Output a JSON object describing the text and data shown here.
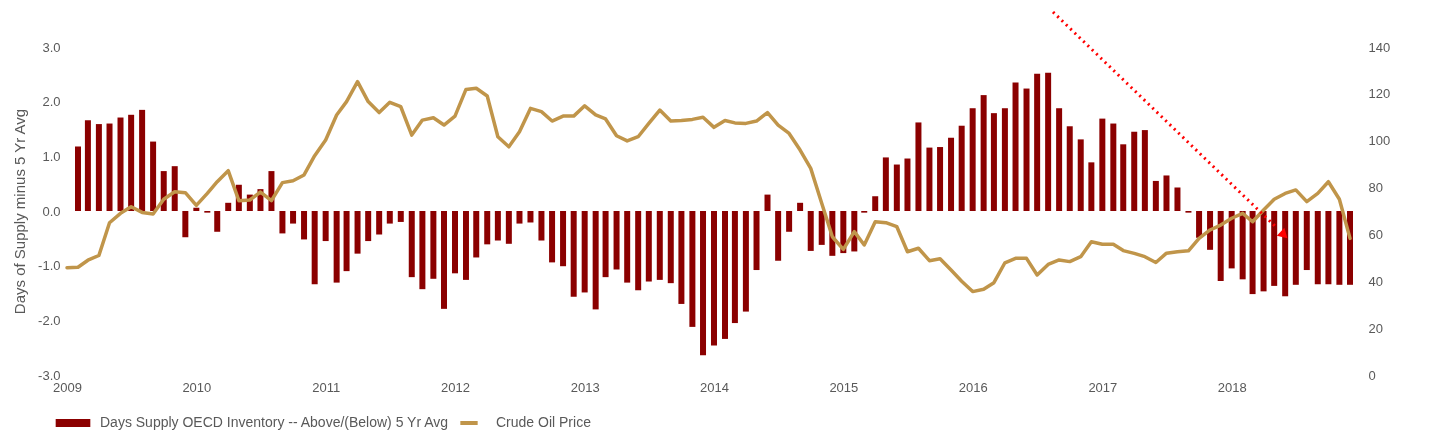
{
  "chart_data": {
    "type": "bar",
    "ylabel": "Days of Supply minus 5 Yr Avg",
    "legend": "bottom",
    "xlim": [
      "2009-01",
      "2019-01"
    ],
    "xticks": [
      "2009",
      "2010",
      "2011",
      "2012",
      "2013",
      "2014",
      "2015",
      "2016",
      "2017",
      "2018"
    ],
    "ylim": [
      -3,
      3
    ],
    "yticks": [
      {
        "value": -3,
        "label": "-3.0"
      },
      {
        "value": -2,
        "label": "-2.0"
      },
      {
        "value": -1,
        "label": "-1.0"
      },
      {
        "value": 0,
        "label": "0.0"
      },
      {
        "value": 1,
        "label": "1.0"
      },
      {
        "value": 2,
        "label": "2.0"
      },
      {
        "value": 3,
        "label": "3.0"
      }
    ],
    "y2lim": [
      0,
      140
    ],
    "y2ticks": [
      0,
      20,
      40,
      60,
      80,
      100,
      120,
      140
    ],
    "series": [
      {
        "name": "Days Supply OECD Inventory -- Above/(Below) 5 Yr Avg",
        "color": "#8b0000",
        "x": [
          "2009-02",
          "2009-03",
          "2009-04",
          "2009-05",
          "2009-06",
          "2009-07",
          "2009-08",
          "2009-09",
          "2009-10",
          "2009-11",
          "2009-12",
          "2010-01",
          "2010-02",
          "2010-03",
          "2010-04",
          "2010-05",
          "2010-06",
          "2010-07",
          "2010-08",
          "2010-09",
          "2010-10",
          "2010-11",
          "2010-12",
          "2011-01",
          "2011-02",
          "2011-03",
          "2011-04",
          "2011-05",
          "2011-06",
          "2011-07",
          "2011-08",
          "2011-09",
          "2011-10",
          "2011-11",
          "2011-12",
          "2012-01",
          "2012-02",
          "2012-03",
          "2012-04",
          "2012-05",
          "2012-06",
          "2012-07",
          "2012-08",
          "2012-09",
          "2012-10",
          "2012-11",
          "2012-12",
          "2013-01",
          "2013-02",
          "2013-03",
          "2013-04",
          "2013-05",
          "2013-06",
          "2013-07",
          "2013-08",
          "2013-09",
          "2013-10",
          "2013-11",
          "2013-12",
          "2014-01",
          "2014-02",
          "2014-03",
          "2014-04",
          "2014-05",
          "2014-06",
          "2014-07",
          "2014-08",
          "2014-09",
          "2014-10",
          "2014-11",
          "2014-12",
          "2015-01",
          "2015-02",
          "2015-03",
          "2015-04",
          "2015-05",
          "2015-06",
          "2015-07",
          "2015-08",
          "2015-09",
          "2015-10",
          "2015-11",
          "2015-12",
          "2016-01",
          "2016-02",
          "2016-03",
          "2016-04",
          "2016-05",
          "2016-06",
          "2016-07",
          "2016-08",
          "2016-09",
          "2016-10",
          "2016-11",
          "2016-12",
          "2017-01",
          "2017-02",
          "2017-03",
          "2017-04",
          "2017-05",
          "2017-06",
          "2017-07",
          "2017-08",
          "2017-09",
          "2017-10",
          "2017-11",
          "2017-12",
          "2018-01",
          "2018-02",
          "2018-03",
          "2018-04",
          "2018-05",
          "2018-06",
          "2018-07",
          "2018-08",
          "2018-09",
          "2018-10",
          "2018-11",
          "2018-12"
        ],
        "values": [
          1.18,
          1.66,
          1.59,
          1.6,
          1.71,
          1.76,
          1.85,
          1.27,
          0.73,
          0.82,
          -0.48,
          0.06,
          -0.03,
          -0.38,
          0.15,
          0.48,
          0.3,
          0.4,
          0.73,
          -0.41,
          -0.23,
          -0.52,
          -1.34,
          -0.55,
          -1.31,
          -1.1,
          -0.78,
          -0.55,
          -0.43,
          -0.23,
          -0.2,
          -1.21,
          -1.43,
          -1.24,
          -1.79,
          -1.14,
          -1.26,
          -0.85,
          -0.61,
          -0.54,
          -0.6,
          -0.23,
          -0.21,
          -0.54,
          -0.94,
          -1.01,
          -1.57,
          -1.49,
          -1.8,
          -1.21,
          -1.07,
          -1.31,
          -1.45,
          -1.29,
          -1.26,
          -1.32,
          -1.7,
          -2.12,
          -2.64,
          -2.46,
          -2.34,
          -2.05,
          -1.84,
          -1.08,
          0.3,
          -0.91,
          -0.38,
          0.15,
          -0.73,
          -0.62,
          -0.82,
          -0.77,
          -0.74,
          -0.03,
          0.27,
          0.98,
          0.85,
          0.96,
          1.62,
          1.16,
          1.17,
          1.34,
          1.56,
          1.88,
          2.12,
          1.79,
          1.88,
          2.35,
          2.24,
          2.51,
          2.53,
          1.88,
          1.55,
          1.31,
          0.89,
          1.69,
          1.6,
          1.22,
          1.45,
          1.48,
          0.55,
          0.65,
          0.43,
          -0.03,
          -0.49,
          -0.71,
          -1.28,
          -1.05,
          -1.25,
          -1.52,
          -1.47,
          -1.37,
          -1.56,
          -1.35,
          -1.08,
          -1.34,
          -1.34,
          -1.35,
          -1.35
        ]
      },
      {
        "name": "Crude Oil Price",
        "type": "line",
        "axis": "y2",
        "color": "#c0954a",
        "x": [
          "2009-01",
          "2009-02",
          "2009-03",
          "2009-04",
          "2009-05",
          "2009-06",
          "2009-07",
          "2009-08",
          "2009-09",
          "2009-10",
          "2009-11",
          "2009-12",
          "2010-01",
          "2010-02",
          "2010-03",
          "2010-04",
          "2010-05",
          "2010-06",
          "2010-07",
          "2010-08",
          "2010-09",
          "2010-10",
          "2010-11",
          "2010-12",
          "2011-01",
          "2011-02",
          "2011-03",
          "2011-04",
          "2011-05",
          "2011-06",
          "2011-07",
          "2011-08",
          "2011-09",
          "2011-10",
          "2011-11",
          "2011-12",
          "2012-01",
          "2012-02",
          "2012-03",
          "2012-04",
          "2012-05",
          "2012-06",
          "2012-07",
          "2012-08",
          "2012-09",
          "2012-10",
          "2012-11",
          "2012-12",
          "2013-01",
          "2013-02",
          "2013-03",
          "2013-04",
          "2013-05",
          "2013-06",
          "2013-07",
          "2013-08",
          "2013-09",
          "2013-10",
          "2013-11",
          "2013-12",
          "2014-01",
          "2014-02",
          "2014-03",
          "2014-04",
          "2014-05",
          "2014-06",
          "2014-07",
          "2014-08",
          "2014-09",
          "2014-10",
          "2014-11",
          "2014-12",
          "2015-01",
          "2015-02",
          "2015-03",
          "2015-04",
          "2015-05",
          "2015-06",
          "2015-07",
          "2015-08",
          "2015-09",
          "2015-10",
          "2015-11",
          "2015-12",
          "2016-01",
          "2016-02",
          "2016-03",
          "2016-04",
          "2016-05",
          "2016-06",
          "2016-07",
          "2016-08",
          "2016-09",
          "2016-10",
          "2016-11",
          "2016-12",
          "2017-01",
          "2017-02",
          "2017-03",
          "2017-04",
          "2017-05",
          "2017-06",
          "2017-07",
          "2017-08",
          "2017-09",
          "2017-10",
          "2017-11",
          "2017-12",
          "2018-01",
          "2018-02",
          "2018-03",
          "2018-04",
          "2018-05",
          "2018-06",
          "2018-07",
          "2018-08",
          "2018-09",
          "2018-10",
          "2018-11",
          "2018-12"
        ],
        "values": [
          45.8,
          46,
          49,
          51,
          65,
          69,
          71.8,
          69.4,
          68.7,
          75,
          78.2,
          77.8,
          72.4,
          77.5,
          82.5,
          87.2,
          74.4,
          74.7,
          78.1,
          74.4,
          82.1,
          82.9,
          85.4,
          93.6,
          100.3,
          111,
          116.7,
          125.2,
          116.7,
          112,
          116.4,
          114.5,
          102.4,
          108.8,
          109.8,
          106.7,
          110.5,
          121.9,
          122.4,
          119.1,
          101.7,
          97.4,
          103.8,
          113.8,
          112.4,
          108.4,
          110.5,
          110.5,
          114.9,
          111,
          109.3,
          102.1,
          99.9,
          101.7,
          107.4,
          113.1,
          108.4,
          108.6,
          109.1,
          110,
          105.7,
          108.6,
          107.6,
          107.4,
          108.4,
          112,
          106.7,
          103.1,
          96,
          88.2,
          73.3,
          59,
          53.6,
          61.2,
          55.5,
          65.4,
          65,
          63.3,
          52.6,
          54.1,
          48.8,
          49.6,
          44.8,
          40,
          35.6,
          36.6,
          39.4,
          47.9,
          49.8,
          49.8,
          42.7,
          47.2,
          49.1,
          48.4,
          50.5,
          56.9,
          55.8,
          55.8,
          53.1,
          51.9,
          50.5,
          48,
          52,
          52.6,
          53,
          58.3,
          61.9,
          64,
          66.9,
          69,
          65.4,
          70.4,
          75,
          77.5,
          79,
          74,
          77.5,
          82.5,
          75,
          58.3
        ]
      }
    ]
  }
}
